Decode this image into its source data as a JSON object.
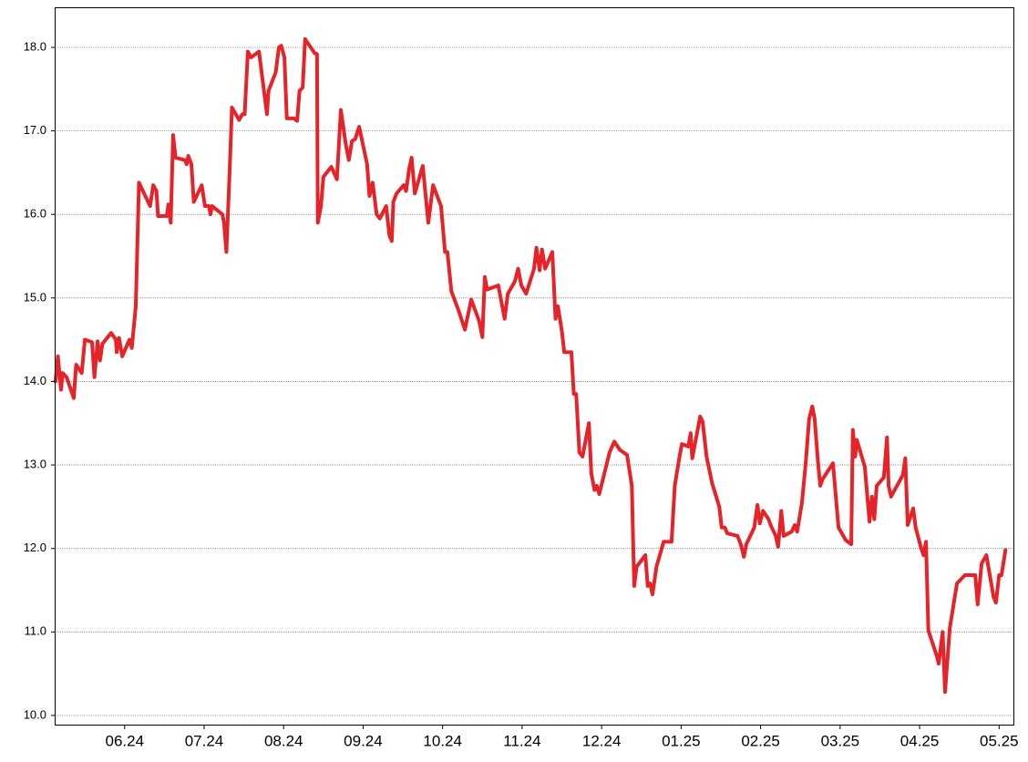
{
  "chart_data": {
    "type": "line",
    "color": "#e52329",
    "grid": true,
    "xlim": [
      -0.88,
      11.18
    ],
    "xticks": [
      {
        "value": 0,
        "label": "06.24"
      },
      {
        "value": 1,
        "label": "07.24"
      },
      {
        "value": 2,
        "label": "08.24"
      },
      {
        "value": 3,
        "label": "09.24"
      },
      {
        "value": 4,
        "label": "10.24"
      },
      {
        "value": 5,
        "label": "11.24"
      },
      {
        "value": 6,
        "label": "12.24"
      },
      {
        "value": 7,
        "label": "01.25"
      },
      {
        "value": 8,
        "label": "02.25"
      },
      {
        "value": 9,
        "label": "03.25"
      },
      {
        "value": 10,
        "label": "04.25"
      },
      {
        "value": 11,
        "label": "05.25"
      }
    ],
    "ylim": [
      9.89,
      18.48
    ],
    "yticks": [
      {
        "value": 10,
        "label": "10.0"
      },
      {
        "value": 11,
        "label": "11.0"
      },
      {
        "value": 12,
        "label": "12.0"
      },
      {
        "value": 13,
        "label": "13.0"
      },
      {
        "value": 14,
        "label": "14.0"
      },
      {
        "value": 15,
        "label": "15.0"
      },
      {
        "value": 16,
        "label": "16.0"
      },
      {
        "value": 17,
        "label": "17.0"
      },
      {
        "value": 18,
        "label": "18.0"
      }
    ],
    "x": [
      -0.87,
      -0.84,
      -0.8,
      -0.78,
      -0.73,
      -0.64,
      -0.61,
      -0.54,
      -0.5,
      -0.41,
      -0.38,
      -0.34,
      -0.31,
      -0.28,
      -0.17,
      -0.11,
      -0.1,
      -0.07,
      -0.03,
      0.06,
      0.09,
      0.14,
      0.17,
      0.18,
      0.32,
      0.36,
      0.4,
      0.42,
      0.53,
      0.55,
      0.58,
      0.61,
      0.64,
      0.76,
      0.78,
      0.8,
      0.84,
      0.87,
      0.97,
      1.01,
      1.06,
      1.08,
      1.1,
      1.23,
      1.25,
      1.28,
      1.32,
      1.35,
      1.44,
      1.48,
      1.51,
      1.55,
      1.59,
      1.69,
      1.75,
      1.79,
      1.81,
      1.9,
      1.94,
      1.97,
      2.01,
      2.04,
      2.13,
      2.17,
      2.2,
      2.24,
      2.27,
      2.39,
      2.42,
      2.43,
      2.47,
      2.5,
      2.6,
      2.67,
      2.72,
      2.78,
      2.82,
      2.86,
      2.9,
      2.95,
      3.05,
      3.08,
      3.12,
      3.17,
      3.21,
      3.29,
      3.33,
      3.36,
      3.38,
      3.42,
      3.51,
      3.54,
      3.58,
      3.61,
      3.65,
      3.75,
      3.82,
      3.88,
      3.98,
      4.03,
      4.06,
      4.11,
      4.2,
      4.28,
      4.36,
      4.46,
      4.5,
      4.53,
      4.56,
      4.7,
      4.78,
      4.82,
      4.91,
      4.95,
      4.99,
      5.05,
      5.15,
      5.18,
      5.22,
      5.25,
      5.29,
      5.38,
      5.42,
      5.45,
      5.5,
      5.53,
      5.62,
      5.65,
      5.68,
      5.72,
      5.76,
      5.81,
      5.84,
      5.87,
      5.91,
      5.94,
      5.97,
      6.1,
      6.16,
      6.23,
      6.32,
      6.38,
      6.41,
      6.44,
      6.55,
      6.58,
      6.61,
      6.64,
      6.69,
      6.78,
      6.88,
      6.92,
      6.98,
      7.01,
      7.09,
      7.12,
      7.14,
      7.24,
      7.27,
      7.32,
      7.39,
      7.48,
      7.51,
      7.55,
      7.58,
      7.71,
      7.75,
      7.79,
      7.82,
      7.92,
      7.96,
      7.99,
      8.03,
      8.1,
      8.13,
      8.19,
      8.22,
      8.26,
      8.29,
      8.39,
      8.43,
      8.46,
      8.52,
      8.57,
      8.61,
      8.65,
      8.68,
      8.72,
      8.75,
      8.78,
      8.91,
      8.98,
      9.07,
      9.14,
      9.16,
      9.19,
      9.21,
      9.31,
      9.37,
      9.4,
      9.43,
      9.46,
      9.55,
      9.59,
      9.61,
      9.64,
      9.79,
      9.82,
      9.85,
      9.92,
      9.95,
      10.02,
      10.05,
      10.08,
      10.11,
      10.22,
      10.24,
      10.29,
      10.32,
      10.38,
      10.47,
      10.57,
      10.7,
      10.73,
      10.78,
      10.84,
      10.93,
      10.96,
      11.0,
      11.03,
      11.08
    ],
    "values": [
      14.0,
      14.3,
      13.9,
      14.1,
      14.05,
      13.8,
      14.2,
      14.1,
      14.5,
      14.47,
      14.05,
      14.48,
      14.25,
      14.45,
      14.58,
      14.5,
      14.35,
      14.52,
      14.3,
      14.5,
      14.4,
      14.9,
      16.0,
      16.38,
      16.1,
      16.35,
      16.28,
      15.98,
      15.98,
      16.12,
      15.9,
      16.95,
      16.68,
      16.65,
      16.6,
      16.7,
      16.6,
      16.15,
      16.35,
      16.1,
      16.1,
      16.0,
      16.1,
      16.0,
      15.9,
      15.55,
      16.5,
      17.28,
      17.13,
      17.2,
      17.2,
      17.95,
      17.88,
      17.95,
      17.5,
      17.2,
      17.48,
      17.7,
      18.0,
      18.02,
      17.88,
      17.15,
      17.15,
      17.12,
      17.48,
      17.52,
      18.1,
      17.93,
      17.92,
      15.9,
      16.1,
      16.45,
      16.57,
      16.42,
      17.25,
      16.85,
      16.65,
      16.88,
      16.9,
      17.05,
      16.6,
      16.22,
      16.38,
      16.0,
      15.95,
      16.1,
      15.75,
      15.68,
      16.15,
      16.25,
      16.35,
      16.28,
      16.55,
      16.68,
      16.25,
      16.58,
      15.9,
      16.35,
      16.1,
      15.55,
      15.55,
      15.08,
      14.85,
      14.62,
      14.98,
      14.72,
      14.53,
      15.25,
      15.1,
      15.15,
      14.75,
      15.05,
      15.2,
      15.35,
      15.15,
      15.05,
      15.35,
      15.6,
      15.33,
      15.58,
      15.35,
      15.55,
      14.75,
      14.9,
      14.6,
      14.35,
      14.35,
      13.85,
      13.85,
      13.15,
      13.1,
      13.35,
      13.5,
      12.9,
      12.7,
      12.75,
      12.65,
      13.15,
      13.28,
      13.18,
      13.12,
      12.75,
      11.55,
      11.78,
      11.92,
      11.55,
      11.58,
      11.45,
      11.78,
      12.08,
      12.08,
      12.75,
      13.1,
      13.25,
      13.22,
      13.38,
      13.08,
      13.58,
      13.52,
      13.1,
      12.78,
      12.5,
      12.25,
      12.25,
      12.18,
      12.15,
      12.05,
      11.9,
      12.05,
      12.25,
      12.52,
      12.3,
      12.45,
      12.35,
      12.27,
      12.15,
      12.02,
      12.45,
      12.15,
      12.2,
      12.28,
      12.2,
      12.55,
      13.05,
      13.55,
      13.7,
      13.55,
      13.05,
      12.75,
      12.83,
      13.02,
      12.25,
      12.1,
      12.05,
      13.42,
      13.1,
      13.3,
      12.98,
      12.32,
      12.62,
      12.35,
      12.75,
      12.85,
      13.33,
      12.75,
      12.62,
      12.88,
      13.08,
      12.28,
      12.48,
      12.25,
      12.0,
      11.92,
      12.08,
      11.02,
      10.7,
      10.62,
      11.0,
      10.28,
      11.05,
      11.58,
      11.68,
      11.68,
      11.33,
      11.82,
      11.92,
      11.42,
      11.35,
      11.68,
      11.68,
      11.98
    ]
  }
}
